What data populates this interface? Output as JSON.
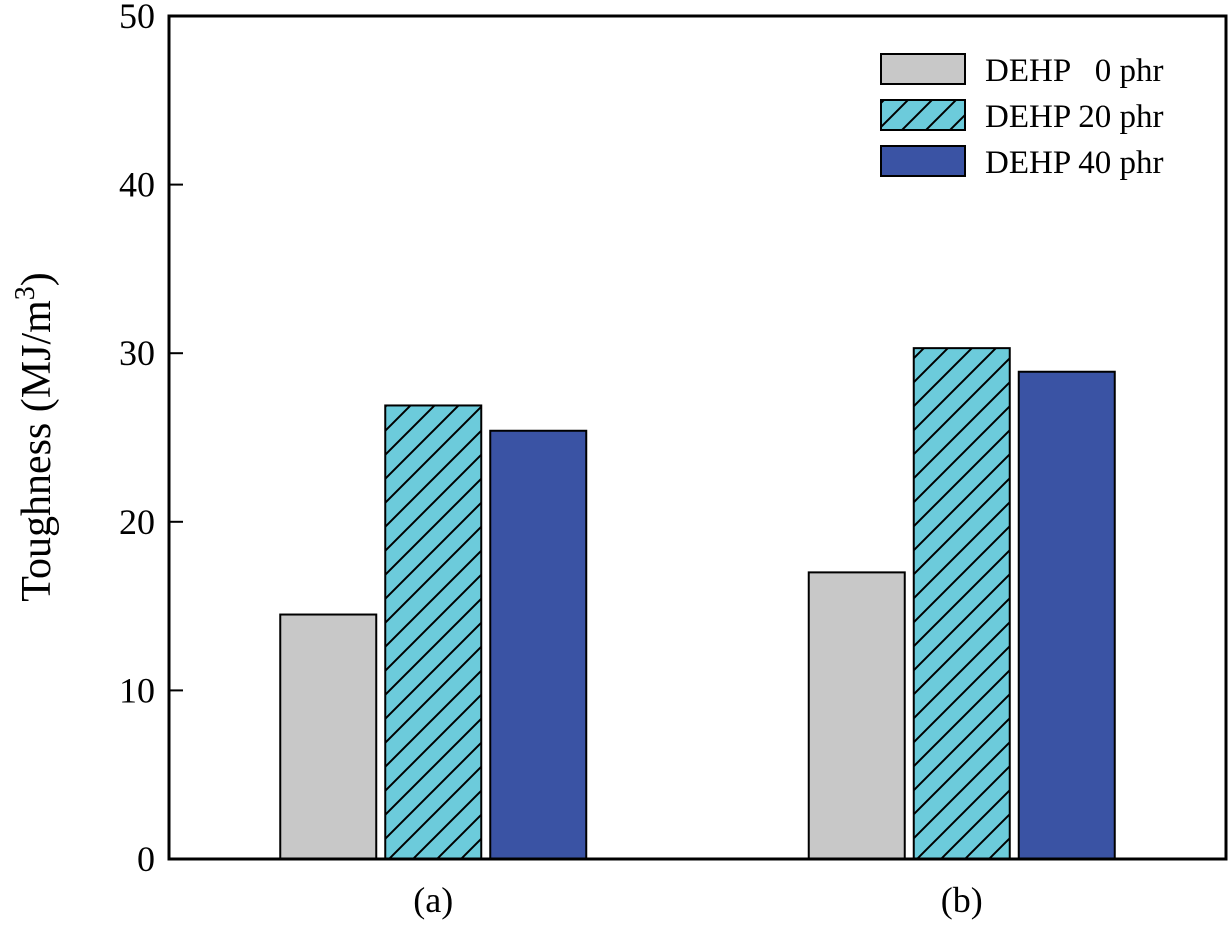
{
  "chart_data": {
    "type": "bar",
    "categories": [
      "(a)",
      "(b)"
    ],
    "series": [
      {
        "name": "DEHP   0 phr",
        "values": [
          14.5,
          17.0
        ],
        "color": "#c8c8c8",
        "pattern": "solid"
      },
      {
        "name": "DEHP 20 phr",
        "values": [
          26.9,
          30.3
        ],
        "color": "#6ccbdb",
        "pattern": "hatch"
      },
      {
        "name": "DEHP 40 phr",
        "values": [
          25.4,
          28.9
        ],
        "color": "#3a53a4",
        "pattern": "solid"
      }
    ],
    "ylabel": "Toughness (MJ/m",
    "ylabel_superscript": "3",
    "ylabel_suffix": ")",
    "ylim": [
      0,
      50
    ],
    "yticks": [
      "0",
      "10",
      "20",
      "30",
      "40",
      "50"
    ],
    "grid": false,
    "legend_position": "top-right"
  }
}
